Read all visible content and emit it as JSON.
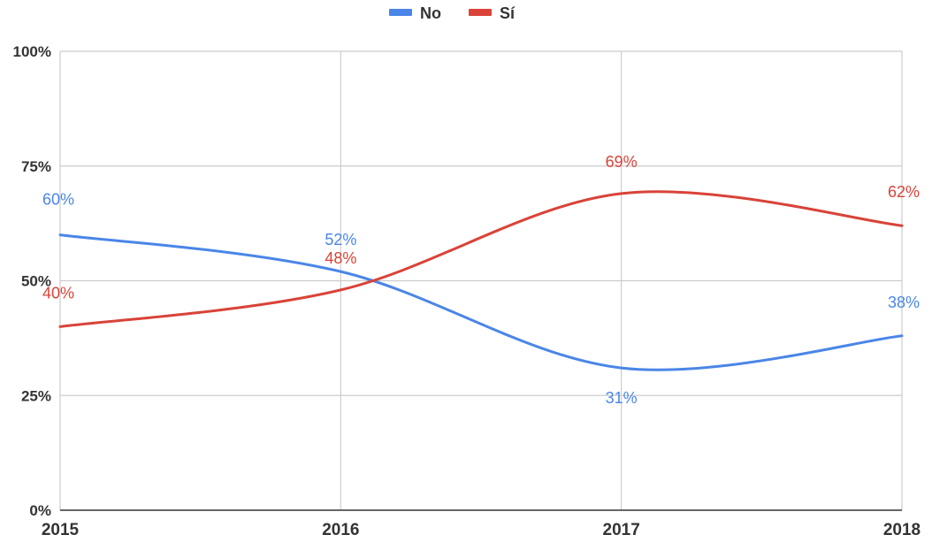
{
  "chart_data": {
    "type": "line",
    "title": "",
    "xlabel": "",
    "ylabel": "",
    "x": [
      "2015",
      "2016",
      "2017",
      "2018"
    ],
    "ylim": [
      0,
      100
    ],
    "y_ticks": [
      "0%",
      "25%",
      "50%",
      "75%",
      "100%"
    ],
    "grid": true,
    "smooth": true,
    "legend_position": "top-center",
    "series": [
      {
        "name": "No",
        "color": "#4a86e8",
        "values": [
          60,
          52,
          31,
          38
        ],
        "labels": [
          "60%",
          "52%",
          "31%",
          "38%"
        ]
      },
      {
        "name": "Sí",
        "color": "#d94338",
        "values": [
          40,
          48,
          69,
          62
        ],
        "labels": [
          "40%",
          "48%",
          "69%",
          "62%"
        ]
      }
    ]
  }
}
